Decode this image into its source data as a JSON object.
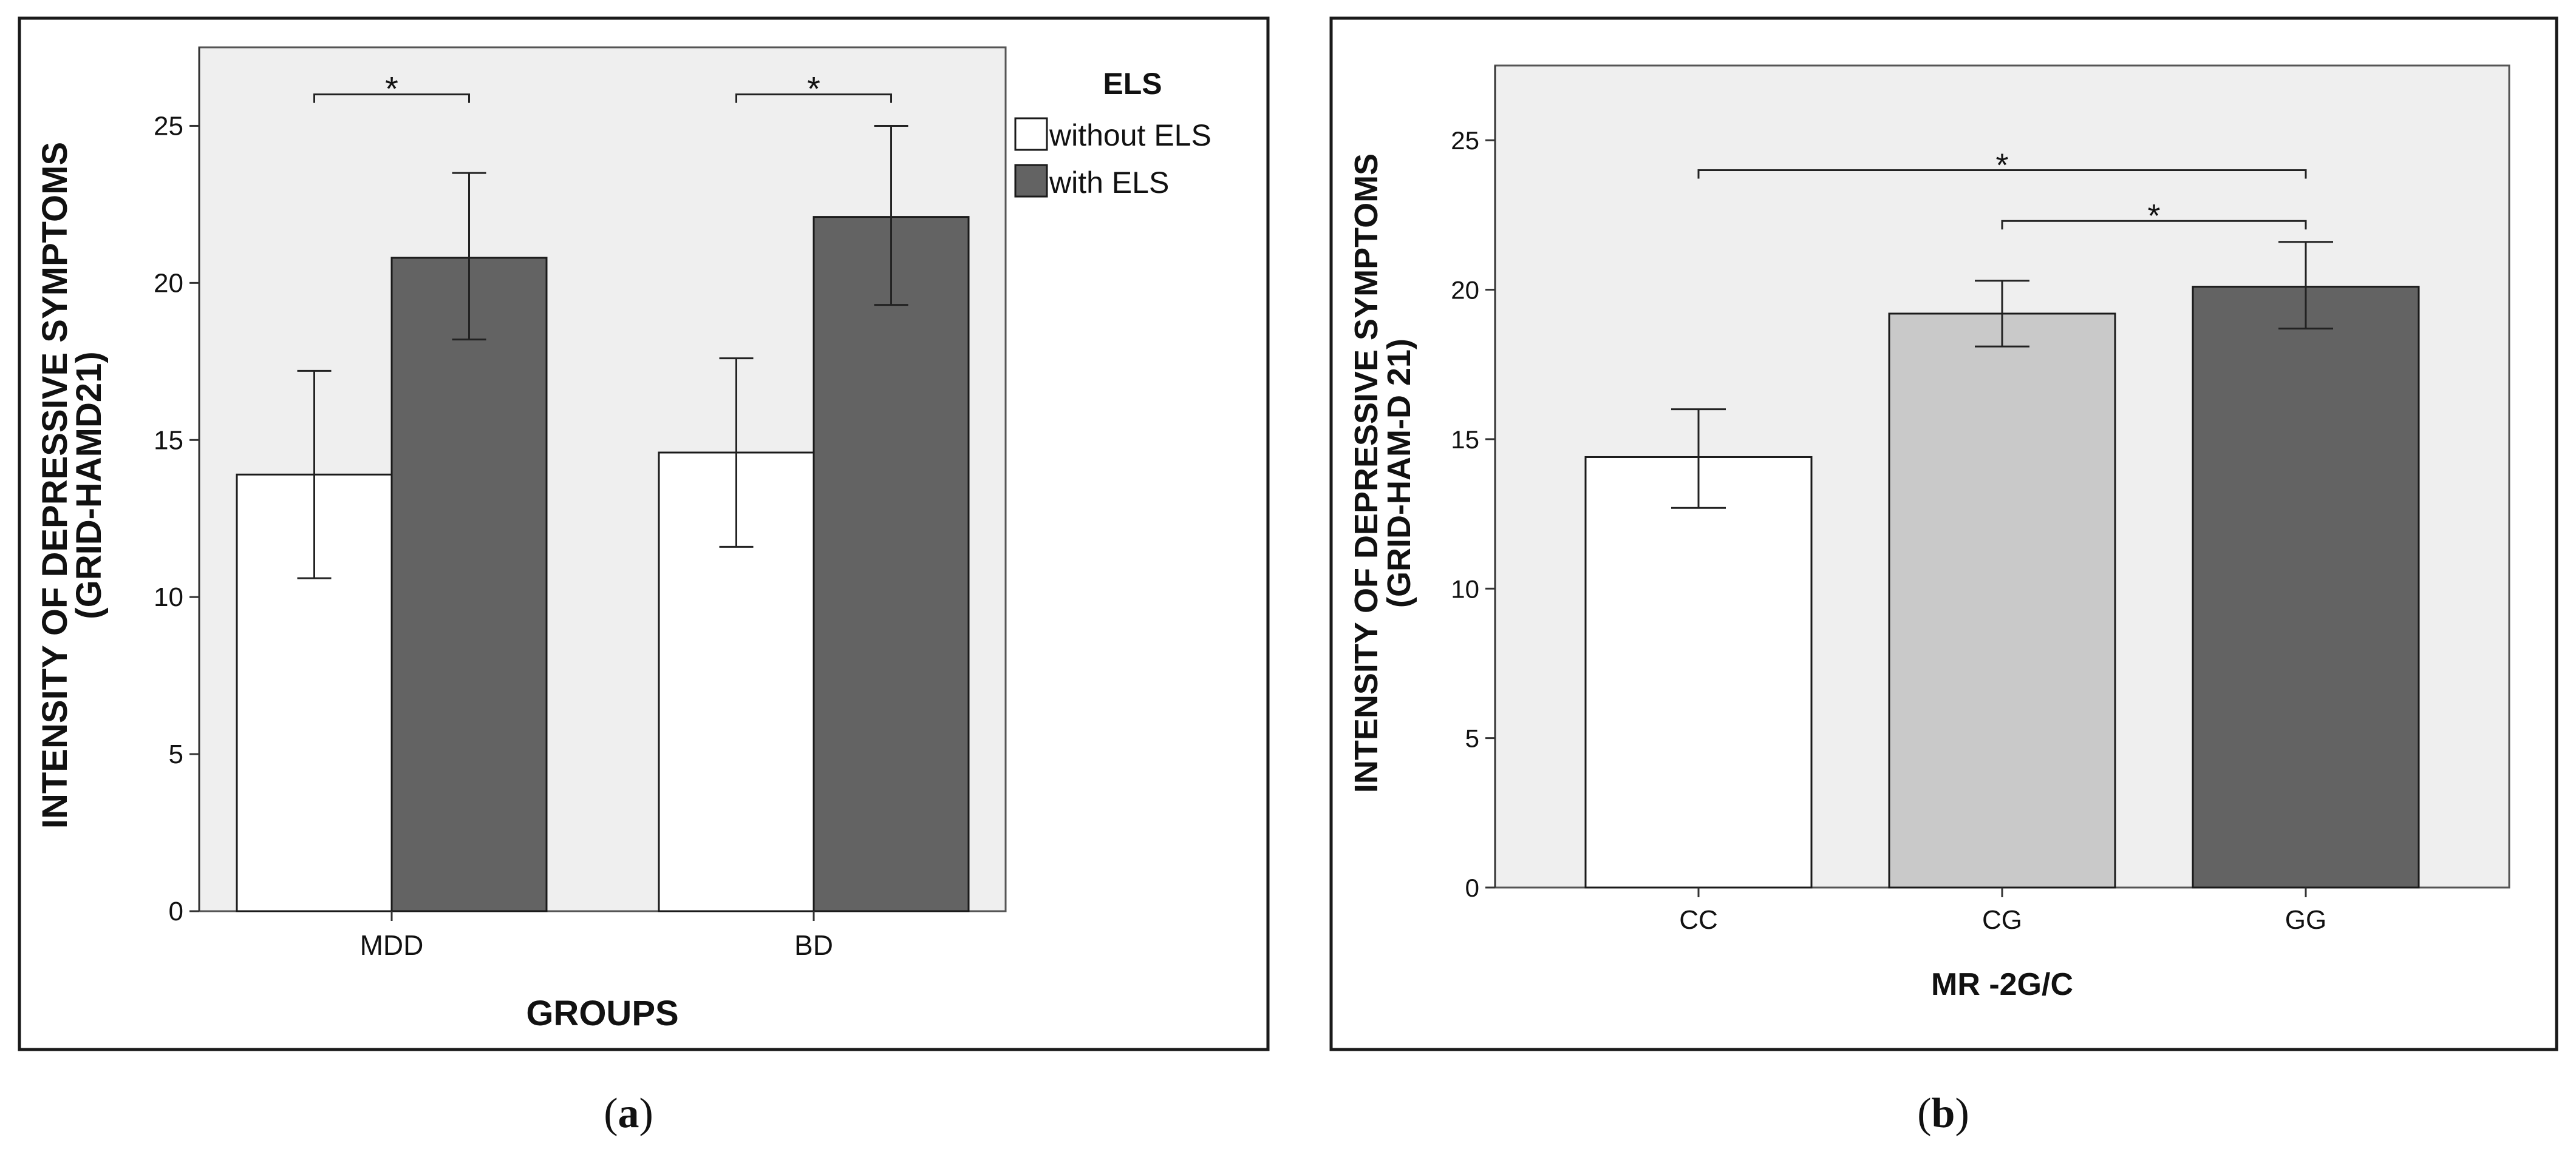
{
  "colors": {
    "plot_bg": "#efefef",
    "without_els": "#ffffff",
    "with_els": "#636363",
    "cg": "#c9c9c9",
    "gg": "#636363",
    "bar_stroke": "#1a1a1a",
    "frame": "#1a1a1a"
  },
  "chart_data": [
    {
      "id": "a",
      "type": "bar",
      "caption": "(a)",
      "caption_letter": "a",
      "title": "",
      "xlabel": "GROUPS",
      "ylabel_line1": "INTENSITY OF DEPRESSIVE SYMPTOMS",
      "ylabel_line2": "(GRID-HAMD21)",
      "ylim": [
        0,
        27.5
      ],
      "yticks": [
        0,
        5,
        10,
        15,
        20,
        25
      ],
      "categories": [
        "MDD",
        "BD"
      ],
      "legend": {
        "title": "ELS",
        "placement": "right"
      },
      "series": [
        {
          "name": "without ELS",
          "values": [
            13.9,
            14.6
          ],
          "err_low": [
            10.6,
            11.6
          ],
          "err_high": [
            17.2,
            17.6
          ]
        },
        {
          "name": "with ELS",
          "values": [
            20.8,
            22.1
          ],
          "err_low": [
            18.2,
            19.3
          ],
          "err_high": [
            23.5,
            25.0
          ]
        }
      ],
      "significance": [
        {
          "category": "MDD",
          "level": 26.0,
          "label": "*"
        },
        {
          "category": "BD",
          "level": 26.0,
          "label": "*"
        }
      ]
    },
    {
      "id": "b",
      "type": "bar",
      "caption": "(b)",
      "caption_letter": "b",
      "title": "",
      "xlabel": "MR -2G/C",
      "ylabel_line1": "INTENSITY OF DEPRESSIVE SYMPTOMS",
      "ylabel_line2": "(GRID-HAM-D 21)",
      "ylim": [
        0,
        27.5
      ],
      "yticks": [
        0,
        5,
        10,
        15,
        20,
        25
      ],
      "categories": [
        "CC",
        "CG",
        "GG"
      ],
      "values": [
        14.4,
        19.2,
        20.1
      ],
      "err_low": [
        12.7,
        18.1,
        18.7
      ],
      "err_high": [
        16.0,
        20.3,
        21.6
      ],
      "significance": [
        {
          "from": "CC",
          "to": "GG",
          "level": 24.0,
          "label": "*"
        },
        {
          "from": "CG",
          "to": "GG",
          "level": 22.3,
          "label": "*"
        }
      ]
    }
  ]
}
